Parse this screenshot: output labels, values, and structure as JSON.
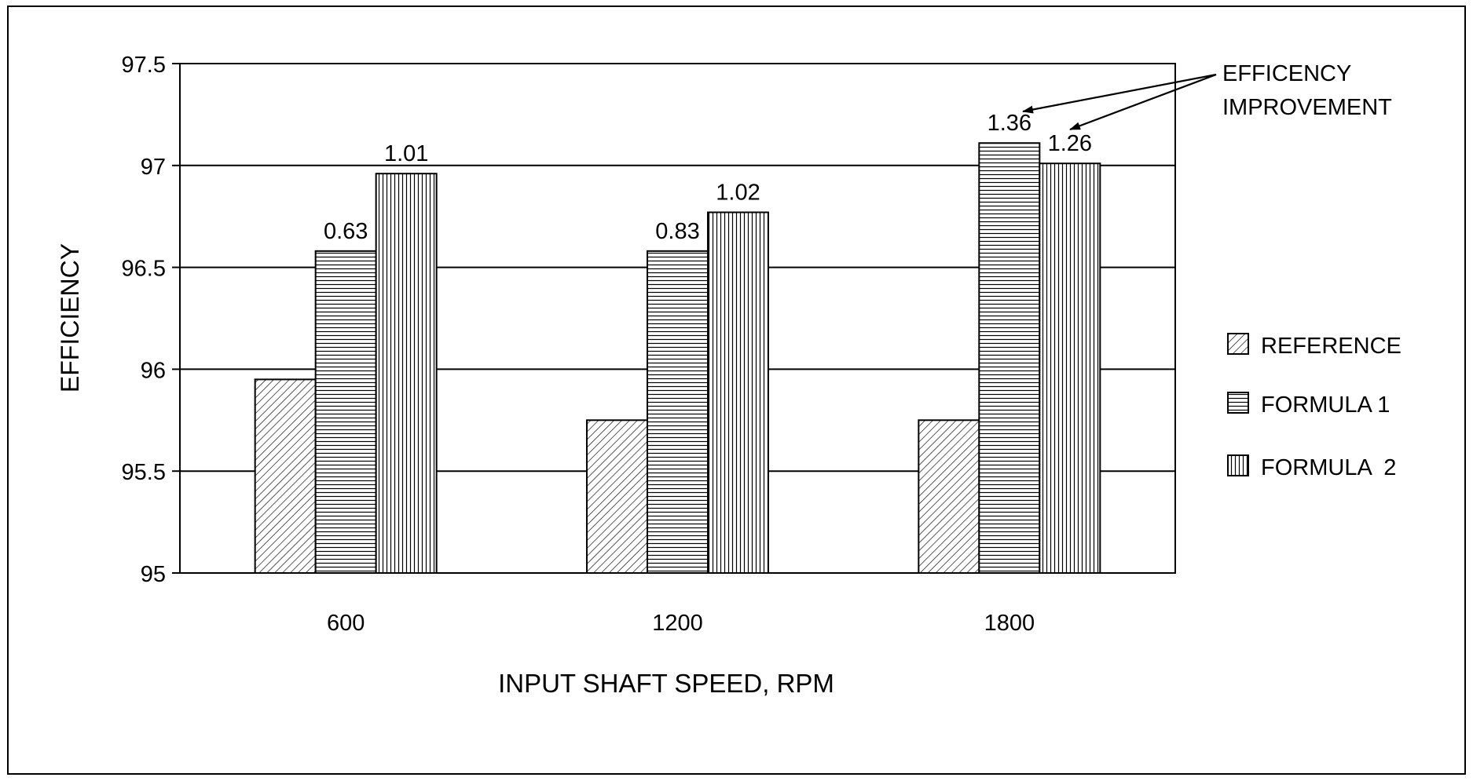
{
  "chart_data": {
    "type": "bar",
    "xlabel": "INPUT SHAFT SPEED, RPM",
    "ylabel": "EFFICIENCY",
    "categories": [
      "600",
      "1200",
      "1800"
    ],
    "ylim": [
      95,
      97.5
    ],
    "yticks": [
      "95",
      "95.5",
      "96",
      "96.5",
      "97",
      "97.5"
    ],
    "grid": true,
    "legend_position": "right",
    "series": [
      {
        "name": "REFERENCE",
        "pattern": "diagonal",
        "values": [
          95.95,
          95.75,
          95.75
        ],
        "labels": [
          "",
          "",
          ""
        ]
      },
      {
        "name": "FORMULA 1",
        "pattern": "horizontal",
        "values": [
          96.58,
          96.58,
          97.11
        ],
        "labels": [
          "0.63",
          "0.83",
          "1.36"
        ]
      },
      {
        "name": "FORMULA  2",
        "pattern": "vertical",
        "values": [
          96.96,
          96.77,
          97.01
        ],
        "labels": [
          "1.01",
          "1.02",
          "1.26"
        ]
      }
    ],
    "annotation": {
      "lines": [
        "EFFICENCY",
        "IMPROVEMENT"
      ]
    }
  },
  "colors": {
    "ink": "#000000",
    "background": "#ffffff"
  }
}
